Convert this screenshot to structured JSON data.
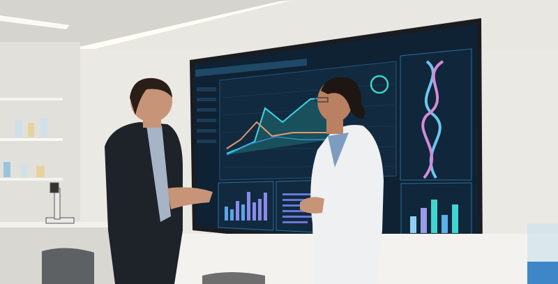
{
  "scene": {
    "description_tags": [
      "lab",
      "data-screen",
      "two-people"
    ],
    "colors": {
      "wall": "#e9e7e2",
      "ceiling": "#dcdad5",
      "screen_bg": "#0f2234",
      "panel_border": "#2d6f9a",
      "line_cyan": "#3fd6e6",
      "line_orange": "#e69a6f",
      "bar_purple": "#8a8ae8",
      "bar_blue": "#5aa6e6",
      "bar_teal": "#3fd6d0",
      "dna_blue": "#6cc6f0",
      "dna_pink": "#d58ad6",
      "jacket": "#1e2229",
      "lab_coat": "#eef0f2"
    },
    "icons": [
      "dna-helix-graphic",
      "line-chart-graphic",
      "bar-chart-graphic",
      "donut-gauge-graphic"
    ]
  }
}
